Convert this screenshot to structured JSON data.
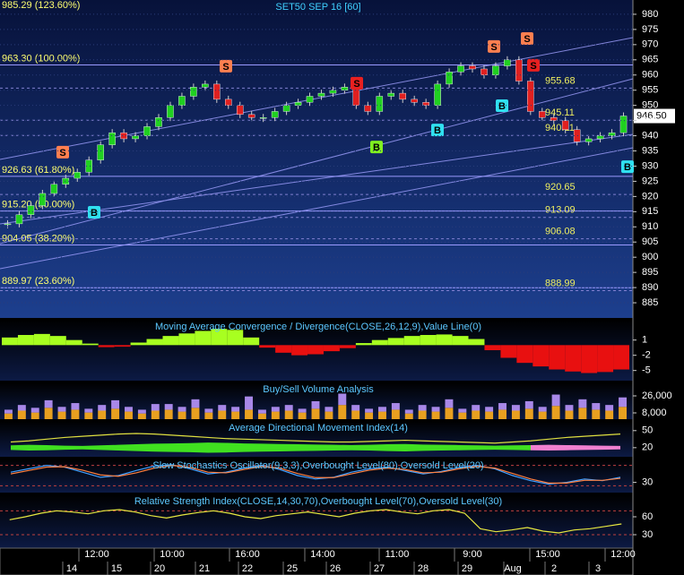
{
  "chart_data": [
    {
      "type": "candlestick",
      "title": "SET50 SEP 16  [60]",
      "closes": [
        911,
        914,
        917,
        921,
        924,
        926,
        928,
        932,
        937,
        941,
        939,
        940,
        943,
        946,
        950,
        953,
        956,
        957,
        952,
        950,
        947,
        946,
        946,
        948,
        950,
        951,
        953,
        954,
        955,
        956,
        950,
        948,
        953,
        954,
        952,
        951,
        950,
        957,
        961,
        963,
        962,
        960,
        963,
        965,
        958,
        948,
        946,
        945,
        942,
        938,
        939,
        940,
        941,
        946.5
      ],
      "ylim": [
        880,
        984.7
      ],
      "yticks": [
        885,
        890,
        895,
        900,
        905,
        910,
        915,
        920,
        925,
        930,
        935,
        940,
        945,
        950,
        955,
        960,
        965,
        970,
        975,
        980
      ],
      "fib_levels": [
        {
          "value": 985.29,
          "label": "985.29 (123.60%)"
        },
        {
          "value": 963.3,
          "label": "963.30 (100.00%)"
        },
        {
          "value": 926.63,
          "label": "926.63 (61.80%)"
        },
        {
          "value": 915.2,
          "label": "915.20 (50.00%)"
        },
        {
          "value": 904.05,
          "label": "904.05 (38.20%)"
        },
        {
          "value": 889.97,
          "label": "889.97 (23.60%)"
        }
      ],
      "price_levels": [
        955.68,
        945.11,
        940.11,
        920.65,
        913.09,
        906.08,
        888.99
      ],
      "last_price": {
        "value": 946.5,
        "label": "946.50"
      },
      "signals": [
        {
          "label": "S",
          "price": 934.6,
          "color": "#ff7f50"
        },
        {
          "label": "B",
          "price": 914.8,
          "color": "#30e0f0"
        },
        {
          "label": "S",
          "price": 962.9,
          "color": "#ff7f50"
        },
        {
          "label": "S",
          "price": 957.3,
          "color": "#e82020"
        },
        {
          "label": "B",
          "price": 936.3,
          "color": "#80f020"
        },
        {
          "label": "B",
          "price": 941.9,
          "color": "#30e0f0"
        },
        {
          "label": "S",
          "price": 969.4,
          "color": "#ff7f50"
        },
        {
          "label": "B",
          "price": 949.9,
          "color": "#30e0f0"
        },
        {
          "label": "S",
          "price": 972,
          "color": "#ff7f50"
        },
        {
          "label": "S",
          "price": 963.2,
          "color": "#e82020"
        },
        {
          "label": "B",
          "price": 929.8,
          "color": "#30e0f0"
        }
      ]
    },
    {
      "type": "bar",
      "title": "Moving Average Convergence / Divergence(CLOSE,26,12,9),Value Line(0)",
      "values": [
        1.5,
        2,
        2.2,
        1.8,
        1,
        0.3,
        -0.4,
        -0.3,
        0.5,
        1.2,
        1.8,
        2.3,
        2.8,
        3.2,
        3,
        1.5,
        -0.5,
        -1.5,
        -2,
        -1.8,
        -1.2,
        -0.6,
        0.4,
        1,
        1.4,
        1.8,
        2,
        2.1,
        1.8,
        1.2,
        -1,
        -2.5,
        -3.5,
        -4.2,
        -4.8,
        -5.2,
        -5.5,
        -5.3,
        -4.8
      ],
      "pos_color": "#a8ff20",
      "neg_color": "#e81010",
      "ylim": [
        -7,
        5
      ],
      "yticks": [
        1,
        -2,
        -5
      ]
    },
    {
      "type": "stacked-bar",
      "title": "Buy/Sell Volume Analysis",
      "series": [
        {
          "color": "#e8a020",
          "values": [
            6000,
            9000,
            7000,
            12000,
            8000,
            10000,
            7000,
            9000,
            11000,
            8000,
            6000,
            9000,
            10000,
            8000,
            12000,
            7000,
            9000,
            8000,
            10000,
            6000,
            8000,
            9000,
            7000,
            11000,
            8000,
            15000,
            9000,
            7000,
            8000,
            10000,
            6000,
            9000,
            8000,
            12000,
            7000,
            9000,
            8000,
            10000,
            9000,
            11000,
            8000,
            14000,
            9000,
            12000,
            10000,
            9000,
            13000
          ]
        },
        {
          "color": "#a888e8",
          "values": [
            4000,
            6000,
            5000,
            8000,
            5000,
            7000,
            4000,
            6000,
            9000,
            5000,
            4000,
            7000,
            6000,
            5000,
            9000,
            4000,
            6000,
            5000,
            14000,
            4000,
            5000,
            6000,
            4000,
            8000,
            5000,
            12000,
            6000,
            4000,
            5000,
            7000,
            4000,
            6000,
            5000,
            9000,
            4000,
            6000,
            5000,
            7000,
            6000,
            8000,
            5000,
            12000,
            6000,
            9000,
            7000,
            6000,
            10000
          ]
        }
      ],
      "ylim": [
        1370,
        40200
      ],
      "yticks": [
        {
          "value": 26000,
          "label": "26,000"
        },
        {
          "value": 8000,
          "label": "8,000"
        }
      ]
    },
    {
      "type": "band",
      "title": "Average Directional Movement Index(14)",
      "series": [
        {
          "color": "#40e020",
          "values": [
            8,
            10,
            9,
            7,
            6,
            8,
            10,
            12,
            14,
            15,
            16,
            18,
            17,
            15,
            14,
            13,
            12,
            11,
            10,
            9,
            10,
            12,
            13,
            11,
            10,
            9,
            8,
            7,
            8,
            9,
            null,
            null,
            null,
            null,
            null
          ]
        },
        {
          "color": "#f080d0",
          "values": [
            null,
            null,
            null,
            null,
            null,
            null,
            null,
            null,
            null,
            null,
            null,
            null,
            null,
            null,
            null,
            null,
            null,
            null,
            null,
            null,
            null,
            null,
            null,
            null,
            null,
            null,
            null,
            null,
            null,
            9,
            10,
            9,
            8,
            7,
            6
          ]
        }
      ],
      "line": {
        "color": "#e0e040",
        "values": [
          30,
          32,
          35,
          38,
          40,
          42,
          44,
          45,
          44,
          42,
          40,
          38,
          36,
          35,
          34,
          33,
          32,
          31,
          30,
          30,
          31,
          32,
          33,
          32,
          31,
          30,
          29,
          28,
          30,
          32,
          35,
          38,
          40,
          42,
          44
        ]
      },
      "center": 20,
      "ylim": [
        4,
        67
      ],
      "yticks": [
        50,
        20
      ]
    },
    {
      "type": "line",
      "title": "Slow Stochastics Oscillator(9,3,3),Overbought Level(80),Oversold Level(20)",
      "series": [
        {
          "color": "#40a0ff",
          "values": [
            60,
            70,
            80,
            75,
            60,
            45,
            50,
            65,
            78,
            82,
            70,
            55,
            60,
            72,
            80,
            68,
            50,
            40,
            45,
            60,
            70,
            75,
            65,
            55,
            62,
            74,
            80,
            70,
            50,
            35,
            25,
            30,
            40,
            35,
            45
          ]
        },
        {
          "color": "#ff8040",
          "values": [
            55,
            65,
            75,
            76,
            66,
            52,
            48,
            58,
            72,
            80,
            74,
            60,
            58,
            68,
            77,
            72,
            56,
            44,
            44,
            55,
            66,
            72,
            68,
            58,
            60,
            70,
            77,
            72,
            56,
            40,
            28,
            28,
            36,
            36,
            42
          ]
        }
      ],
      "ylim": [
        0,
        100
      ],
      "yticks": [
        30
      ],
      "levels": [
        80,
        20
      ]
    },
    {
      "type": "line",
      "title": "Relative Strength Index(CLOSE,14,30,70),Overbought Level(70),Oversold Level(30)",
      "series": [
        {
          "color": "#e8e840",
          "values": [
            55,
            60,
            66,
            70,
            68,
            65,
            70,
            72,
            68,
            62,
            58,
            63,
            67,
            70,
            66,
            60,
            57,
            62,
            65,
            68,
            64,
            60,
            66,
            70,
            72,
            68,
            65,
            70,
            72,
            66,
            40,
            35,
            38,
            42,
            36,
            33,
            38,
            40,
            44,
            48
          ]
        }
      ],
      "ylim": [
        7.5,
        97.5
      ],
      "yticks": [
        60,
        30
      ],
      "levels": [
        70,
        30
      ]
    }
  ],
  "time_axis": {
    "times": [
      "12:00",
      "10:00",
      "16:00",
      "14:00",
      "11:00",
      "9:00",
      "15:00",
      "12:00"
    ],
    "days": [
      "14",
      "15",
      "20",
      "21",
      "22",
      "25",
      "26",
      "27",
      "28",
      "29",
      "Aug",
      "2",
      "3"
    ]
  }
}
